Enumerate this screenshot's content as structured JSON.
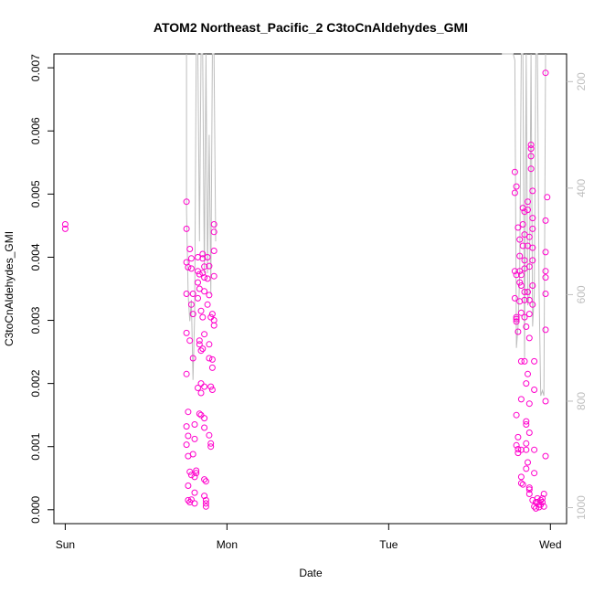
{
  "chart_data": {
    "type": "scatter",
    "title": "ATOM2 Northeast_Pacific_2 C3toCnAldehydes_GMI",
    "xlabel": "Date",
    "ylabel": "C3toCnAldehydes_GMI",
    "xlim": [
      -0.07,
      3.1
    ],
    "ylim": [
      -0.00022,
      0.00722
    ],
    "x_ticks": [
      {
        "value": 0,
        "label": "Sun"
      },
      {
        "value": 1,
        "label": "Mon"
      },
      {
        "value": 2,
        "label": "Tue"
      },
      {
        "value": 3,
        "label": "Wed"
      }
    ],
    "y_ticks": [
      {
        "value": 0,
        "label": "0.000"
      },
      {
        "value": 0.001,
        "label": "0.001"
      },
      {
        "value": 0.002,
        "label": "0.002"
      },
      {
        "value": 0.003,
        "label": "0.003"
      },
      {
        "value": 0.004,
        "label": "0.004"
      },
      {
        "value": 0.005,
        "label": "0.005"
      },
      {
        "value": 0.006,
        "label": "0.006"
      },
      {
        "value": 0.007,
        "label": "0.007"
      }
    ],
    "right_axis": {
      "reversed": true,
      "range": [
        148,
        1030
      ],
      "ticks": [
        {
          "value": 200,
          "label": "200"
        },
        {
          "value": 400,
          "label": "400"
        },
        {
          "value": 600,
          "label": "600"
        },
        {
          "value": 800,
          "label": "800"
        },
        {
          "value": 1000,
          "label": "1000"
        }
      ],
      "color": "#bebebe"
    },
    "grid": false,
    "legend": "none",
    "series": [
      {
        "marker": "open-circle",
        "color": "#ff00cc",
        "points": [
          [
            0.0,
            0.00452
          ],
          [
            0.0,
            0.00445
          ],
          [
            0.75,
            0.00488
          ],
          [
            0.75,
            0.00445
          ],
          [
            0.75,
            0.00392
          ],
          [
            0.76,
            0.00384
          ],
          [
            0.75,
            0.00342
          ],
          [
            0.75,
            0.0028
          ],
          [
            0.75,
            0.00215
          ],
          [
            0.76,
            0.00155
          ],
          [
            0.75,
            0.00132
          ],
          [
            0.76,
            0.00117
          ],
          [
            0.75,
            0.00103
          ],
          [
            0.76,
            0.00085
          ],
          [
            0.77,
            0.0006
          ],
          [
            0.76,
            0.00038
          ],
          [
            0.76,
            0.00015
          ],
          [
            0.77,
            0.00012
          ],
          [
            0.78,
            0.00016
          ],
          [
            0.78,
            0.00055
          ],
          [
            0.77,
            0.00413
          ],
          [
            0.78,
            0.00398
          ],
          [
            0.78,
            0.00382
          ],
          [
            0.79,
            0.00342
          ],
          [
            0.78,
            0.00325
          ],
          [
            0.79,
            0.0031
          ],
          [
            0.77,
            0.00268
          ],
          [
            0.79,
            0.0024
          ],
          [
            0.8,
            0.00135
          ],
          [
            0.8,
            0.00112
          ],
          [
            0.79,
            0.00088
          ],
          [
            0.8,
            0.00052
          ],
          [
            0.8,
            0.0001
          ],
          [
            0.81,
            0.00062
          ],
          [
            0.81,
            0.00058
          ],
          [
            0.8,
            0.00027
          ],
          [
            0.82,
            0.004
          ],
          [
            0.82,
            0.00378
          ],
          [
            0.83,
            0.00373
          ],
          [
            0.82,
            0.0036
          ],
          [
            0.83,
            0.0035
          ],
          [
            0.82,
            0.00335
          ],
          [
            0.84,
            0.00315
          ],
          [
            0.83,
            0.00268
          ],
          [
            0.83,
            0.00262
          ],
          [
            0.84,
            0.00252
          ],
          [
            0.82,
            0.00193
          ],
          [
            0.84,
            0.00185
          ],
          [
            0.83,
            0.00152
          ],
          [
            0.84,
            0.0015
          ],
          [
            0.84,
            0.002
          ],
          [
            0.85,
            0.00405
          ],
          [
            0.85,
            0.00398
          ],
          [
            0.86,
            0.00385
          ],
          [
            0.85,
            0.00375
          ],
          [
            0.86,
            0.00368
          ],
          [
            0.86,
            0.00346
          ],
          [
            0.85,
            0.00305
          ],
          [
            0.86,
            0.00278
          ],
          [
            0.85,
            0.00255
          ],
          [
            0.86,
            0.00195
          ],
          [
            0.86,
            0.00145
          ],
          [
            0.86,
            0.0013
          ],
          [
            0.86,
            0.00048
          ],
          [
            0.87,
            0.00045
          ],
          [
            0.86,
            0.00022
          ],
          [
            0.87,
            0.0001
          ],
          [
            0.87,
            5e-05
          ],
          [
            0.87,
            0.00015
          ],
          [
            0.88,
            0.004
          ],
          [
            0.89,
            0.00386
          ],
          [
            0.88,
            0.00366
          ],
          [
            0.89,
            0.0034
          ],
          [
            0.88,
            0.00325
          ],
          [
            0.9,
            0.00305
          ],
          [
            0.89,
            0.00262
          ],
          [
            0.89,
            0.0024
          ],
          [
            0.9,
            0.00195
          ],
          [
            0.9,
            0.00105
          ],
          [
            0.9,
            0.001
          ],
          [
            0.89,
            0.00118
          ],
          [
            0.91,
            0.0019
          ],
          [
            0.91,
            0.0031
          ],
          [
            0.91,
            0.00238
          ],
          [
            0.91,
            0.00225
          ],
          [
            0.92,
            0.0037
          ],
          [
            0.92,
            0.00292
          ],
          [
            0.92,
            0.003
          ],
          [
            0.92,
            0.00452
          ],
          [
            0.92,
            0.0044
          ],
          [
            0.92,
            0.0041
          ],
          [
            2.78,
            0.00535
          ],
          [
            2.78,
            0.00502
          ],
          [
            2.79,
            0.00512
          ],
          [
            2.78,
            0.00378
          ],
          [
            2.79,
            0.00372
          ],
          [
            2.78,
            0.00335
          ],
          [
            2.79,
            0.00305
          ],
          [
            2.79,
            0.00302
          ],
          [
            2.79,
            0.00298
          ],
          [
            2.8,
            0.00282
          ],
          [
            2.79,
            0.0015
          ],
          [
            2.79,
            0.00102
          ],
          [
            2.8,
            0.00096
          ],
          [
            2.8,
            0.00115
          ],
          [
            2.8,
            0.0009
          ],
          [
            2.8,
            0.00447
          ],
          [
            2.81,
            0.00428
          ],
          [
            2.81,
            0.00402
          ],
          [
            2.81,
            0.00378
          ],
          [
            2.82,
            0.00372
          ],
          [
            2.81,
            0.0036
          ],
          [
            2.82,
            0.00355
          ],
          [
            2.81,
            0.0033
          ],
          [
            2.82,
            0.00312
          ],
          [
            2.82,
            0.00235
          ],
          [
            2.82,
            0.00175
          ],
          [
            2.82,
            0.00095
          ],
          [
            2.82,
            0.00052
          ],
          [
            2.82,
            0.00042
          ],
          [
            2.83,
            0.0004
          ],
          [
            2.83,
            0.00478
          ],
          [
            2.84,
            0.00472
          ],
          [
            2.83,
            0.00452
          ],
          [
            2.84,
            0.00436
          ],
          [
            2.83,
            0.00418
          ],
          [
            2.84,
            0.00395
          ],
          [
            2.84,
            0.00382
          ],
          [
            2.84,
            0.00345
          ],
          [
            2.84,
            0.00332
          ],
          [
            2.84,
            0.00305
          ],
          [
            2.85,
            0.0029
          ],
          [
            2.84,
            0.00235
          ],
          [
            2.85,
            0.002
          ],
          [
            2.85,
            0.0014
          ],
          [
            2.85,
            0.00135
          ],
          [
            2.85,
            0.00105
          ],
          [
            2.85,
            0.00095
          ],
          [
            2.86,
            0.00075
          ],
          [
            2.85,
            0.00065
          ],
          [
            2.86,
            0.00488
          ],
          [
            2.86,
            0.00475
          ],
          [
            2.87,
            0.00432
          ],
          [
            2.86,
            0.00418
          ],
          [
            2.87,
            0.00385
          ],
          [
            2.86,
            0.00345
          ],
          [
            2.87,
            0.00332
          ],
          [
            2.87,
            0.0031
          ],
          [
            2.87,
            0.00272
          ],
          [
            2.86,
            0.00215
          ],
          [
            2.87,
            0.00168
          ],
          [
            2.87,
            0.00122
          ],
          [
            2.87,
            0.00035
          ],
          [
            2.87,
            0.00032
          ],
          [
            2.87,
            0.00025
          ],
          [
            2.88,
            0.00578
          ],
          [
            2.88,
            0.00572
          ],
          [
            2.88,
            0.0056
          ],
          [
            2.88,
            0.0054
          ],
          [
            2.89,
            0.00505
          ],
          [
            2.89,
            0.00462
          ],
          [
            2.89,
            0.00445
          ],
          [
            2.89,
            0.00415
          ],
          [
            2.89,
            0.00395
          ],
          [
            2.89,
            0.00355
          ],
          [
            2.89,
            0.00325
          ],
          [
            2.9,
            0.00235
          ],
          [
            2.9,
            0.0019
          ],
          [
            2.9,
            0.00095
          ],
          [
            2.9,
            0.00058
          ],
          [
            2.89,
            0.00015
          ],
          [
            2.9,
            5e-05
          ],
          [
            2.91,
            2e-05
          ],
          [
            2.91,
            0.00012
          ],
          [
            2.92,
            0.00018
          ],
          [
            2.92,
            0.00012
          ],
          [
            2.93,
            8e-05
          ],
          [
            2.93,
            4e-05
          ],
          [
            2.94,
            0.00015
          ],
          [
            2.94,
            8e-05
          ],
          [
            2.95,
            0.00012
          ],
          [
            2.95,
            0.00018
          ],
          [
            2.96,
            5e-05
          ],
          [
            2.96,
            0.00025
          ],
          [
            2.97,
            0.00692
          ],
          [
            2.98,
            0.00495
          ],
          [
            2.97,
            0.00458
          ],
          [
            2.97,
            0.00408
          ],
          [
            2.97,
            0.00378
          ],
          [
            2.97,
            0.00368
          ],
          [
            2.97,
            0.00342
          ],
          [
            2.97,
            0.00285
          ],
          [
            2.97,
            0.00172
          ],
          [
            2.97,
            0.00085
          ]
        ]
      },
      {
        "name": "",
        "axis": "right",
        "marker": "line",
        "color": "#bebebe",
        "segments": [
          [
            [
              0.75,
              148
            ],
            [
              0.75,
              440
            ],
            [
              0.76,
              600
            ],
            [
              0.77,
              650
            ],
            [
              0.78,
              610
            ],
            [
              0.79,
              760
            ],
            [
              0.8,
              640
            ],
            [
              0.81,
              148
            ],
            [
              0.82,
              148
            ],
            [
              0.83,
              500
            ],
            [
              0.84,
              148
            ],
            [
              0.85,
              148
            ],
            [
              0.86,
              560
            ],
            [
              0.87,
              148
            ],
            [
              0.88,
              560
            ],
            [
              0.89,
              300
            ],
            [
              0.9,
              600
            ],
            [
              0.91,
              148
            ],
            [
              0.92,
              148
            ],
            [
              0.93,
              500
            ]
          ],
          [
            [
              2.7,
              148
            ],
            [
              2.77,
              148
            ],
            [
              2.78,
              160
            ],
            [
              2.79,
              700
            ],
            [
              2.8,
              660
            ],
            [
              2.81,
              560
            ],
            [
              2.82,
              148
            ],
            [
              2.83,
              148
            ],
            [
              2.84,
              720
            ],
            [
              2.85,
              148
            ],
            [
              2.86,
              620
            ],
            [
              2.87,
              600
            ],
            [
              2.88,
              148
            ],
            [
              2.89,
              660
            ],
            [
              2.9,
              600
            ],
            [
              2.91,
              148
            ],
            [
              2.92,
              148
            ],
            [
              2.93,
              590
            ],
            [
              2.94,
              790
            ],
            [
              2.95,
              780
            ],
            [
              2.96,
              790
            ],
            [
              2.97,
              148
            ]
          ]
        ]
      }
    ]
  }
}
